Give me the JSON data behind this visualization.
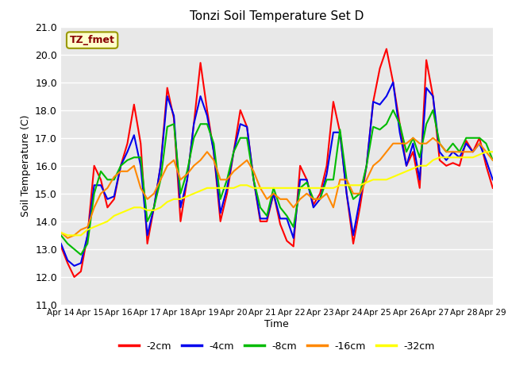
{
  "title": "Tonzi Soil Temperature Set D",
  "xlabel": "Time",
  "ylabel": "Soil Temperature (C)",
  "ylim": [
    11.0,
    21.0
  ],
  "yticks": [
    11.0,
    12.0,
    13.0,
    14.0,
    15.0,
    16.0,
    17.0,
    18.0,
    19.0,
    20.0,
    21.0
  ],
  "xtick_labels": [
    "Apr 14",
    "Apr 15",
    "Apr 16",
    "Apr 17",
    "Apr 18",
    "Apr 19",
    "Apr 20",
    "Apr 21",
    "Apr 22",
    "Apr 23",
    "Apr 24",
    "Apr 25",
    "Apr 26",
    "Apr 27",
    "Apr 28",
    "Apr 29"
  ],
  "legend_label": "TZ_fmet",
  "series_labels": [
    "-2cm",
    "-4cm",
    "-8cm",
    "-16cm",
    "-32cm"
  ],
  "series_colors": [
    "#ff0000",
    "#0000ee",
    "#00bb00",
    "#ff8800",
    "#ffff00"
  ],
  "line_width": 1.5,
  "fig_bg_color": "#ffffff",
  "plot_bg_color": "#e8e8e8",
  "grid_color": "#ffffff",
  "annotation_bg": "#ffffcc",
  "annotation_border": "#999900",
  "annotation_text_color": "#880000",
  "t_2cm": [
    13.1,
    12.5,
    12.0,
    12.2,
    13.5,
    16.0,
    15.5,
    14.5,
    14.8,
    16.0,
    16.8,
    18.2,
    16.8,
    13.2,
    14.5,
    16.0,
    18.8,
    17.7,
    14.0,
    15.5,
    17.5,
    19.7,
    18.0,
    16.5,
    14.0,
    15.0,
    16.5,
    18.0,
    17.4,
    15.5,
    14.0,
    14.0,
    15.0,
    13.9,
    13.3,
    13.1,
    16.0,
    15.5,
    14.6,
    15.0,
    16.0,
    18.3,
    17.2,
    15.0,
    13.2,
    14.5,
    16.0,
    18.3,
    19.5,
    20.2,
    19.0,
    17.5,
    16.0,
    16.5,
    15.2,
    19.8,
    18.5,
    16.2,
    16.0,
    16.1,
    16.0,
    16.9,
    16.5,
    17.0,
    16.0,
    15.2
  ],
  "t_4cm": [
    13.2,
    12.6,
    12.4,
    12.5,
    13.5,
    15.3,
    15.3,
    14.8,
    14.9,
    16.0,
    16.5,
    17.1,
    16.0,
    13.5,
    14.5,
    16.0,
    18.5,
    17.8,
    14.5,
    15.5,
    17.5,
    18.5,
    17.8,
    16.5,
    14.3,
    15.2,
    16.5,
    17.5,
    17.4,
    15.5,
    14.1,
    14.1,
    15.0,
    14.1,
    14.1,
    13.4,
    15.5,
    15.5,
    14.5,
    14.8,
    15.7,
    17.2,
    17.2,
    15.0,
    13.5,
    14.8,
    16.0,
    18.3,
    18.2,
    18.5,
    19.0,
    17.2,
    16.0,
    16.8,
    15.5,
    18.8,
    18.5,
    16.5,
    16.2,
    16.5,
    16.3,
    16.8,
    16.5,
    16.8,
    16.2,
    15.5
  ],
  "t_8cm": [
    13.5,
    13.2,
    13.0,
    12.8,
    13.2,
    15.0,
    15.8,
    15.5,
    15.5,
    16.0,
    16.2,
    16.3,
    16.3,
    14.0,
    14.5,
    15.5,
    17.4,
    17.5,
    15.0,
    15.8,
    17.0,
    17.5,
    17.5,
    16.8,
    14.8,
    15.5,
    16.5,
    17.0,
    17.0,
    15.5,
    14.5,
    14.2,
    15.2,
    14.5,
    14.2,
    13.8,
    15.2,
    15.4,
    14.8,
    14.8,
    15.5,
    15.5,
    17.3,
    15.5,
    14.8,
    15.0,
    16.0,
    17.4,
    17.3,
    17.5,
    18.0,
    17.5,
    16.5,
    17.0,
    16.3,
    17.5,
    18.0,
    16.8,
    16.5,
    16.8,
    16.5,
    17.0,
    17.0,
    17.0,
    16.8,
    16.2
  ],
  "t_16cm": [
    13.6,
    13.4,
    13.5,
    13.7,
    13.8,
    14.5,
    15.0,
    15.2,
    15.6,
    15.8,
    15.8,
    16.0,
    15.2,
    14.8,
    15.0,
    15.5,
    16.0,
    16.2,
    15.5,
    15.7,
    16.0,
    16.2,
    16.5,
    16.2,
    15.5,
    15.5,
    15.8,
    16.0,
    16.2,
    15.8,
    15.2,
    14.8,
    15.0,
    14.8,
    14.8,
    14.5,
    14.8,
    15.0,
    14.8,
    14.8,
    15.0,
    14.5,
    15.5,
    15.5,
    15.0,
    15.0,
    15.5,
    16.0,
    16.2,
    16.5,
    16.8,
    16.8,
    16.8,
    17.0,
    16.8,
    16.8,
    17.0,
    16.8,
    16.5,
    16.5,
    16.5,
    16.5,
    16.5,
    16.8,
    16.5,
    16.2
  ],
  "t_32cm": [
    13.6,
    13.5,
    13.5,
    13.5,
    13.7,
    13.8,
    13.9,
    14.0,
    14.2,
    14.3,
    14.4,
    14.5,
    14.5,
    14.4,
    14.4,
    14.5,
    14.7,
    14.8,
    14.8,
    14.9,
    15.0,
    15.1,
    15.2,
    15.2,
    15.2,
    15.2,
    15.2,
    15.3,
    15.3,
    15.2,
    15.2,
    15.2,
    15.2,
    15.2,
    15.2,
    15.2,
    15.2,
    15.2,
    15.2,
    15.2,
    15.2,
    15.2,
    15.3,
    15.3,
    15.3,
    15.3,
    15.4,
    15.5,
    15.5,
    15.5,
    15.6,
    15.7,
    15.8,
    15.9,
    16.0,
    16.0,
    16.2,
    16.3,
    16.3,
    16.3,
    16.3,
    16.3,
    16.3,
    16.4,
    16.5,
    16.5
  ]
}
